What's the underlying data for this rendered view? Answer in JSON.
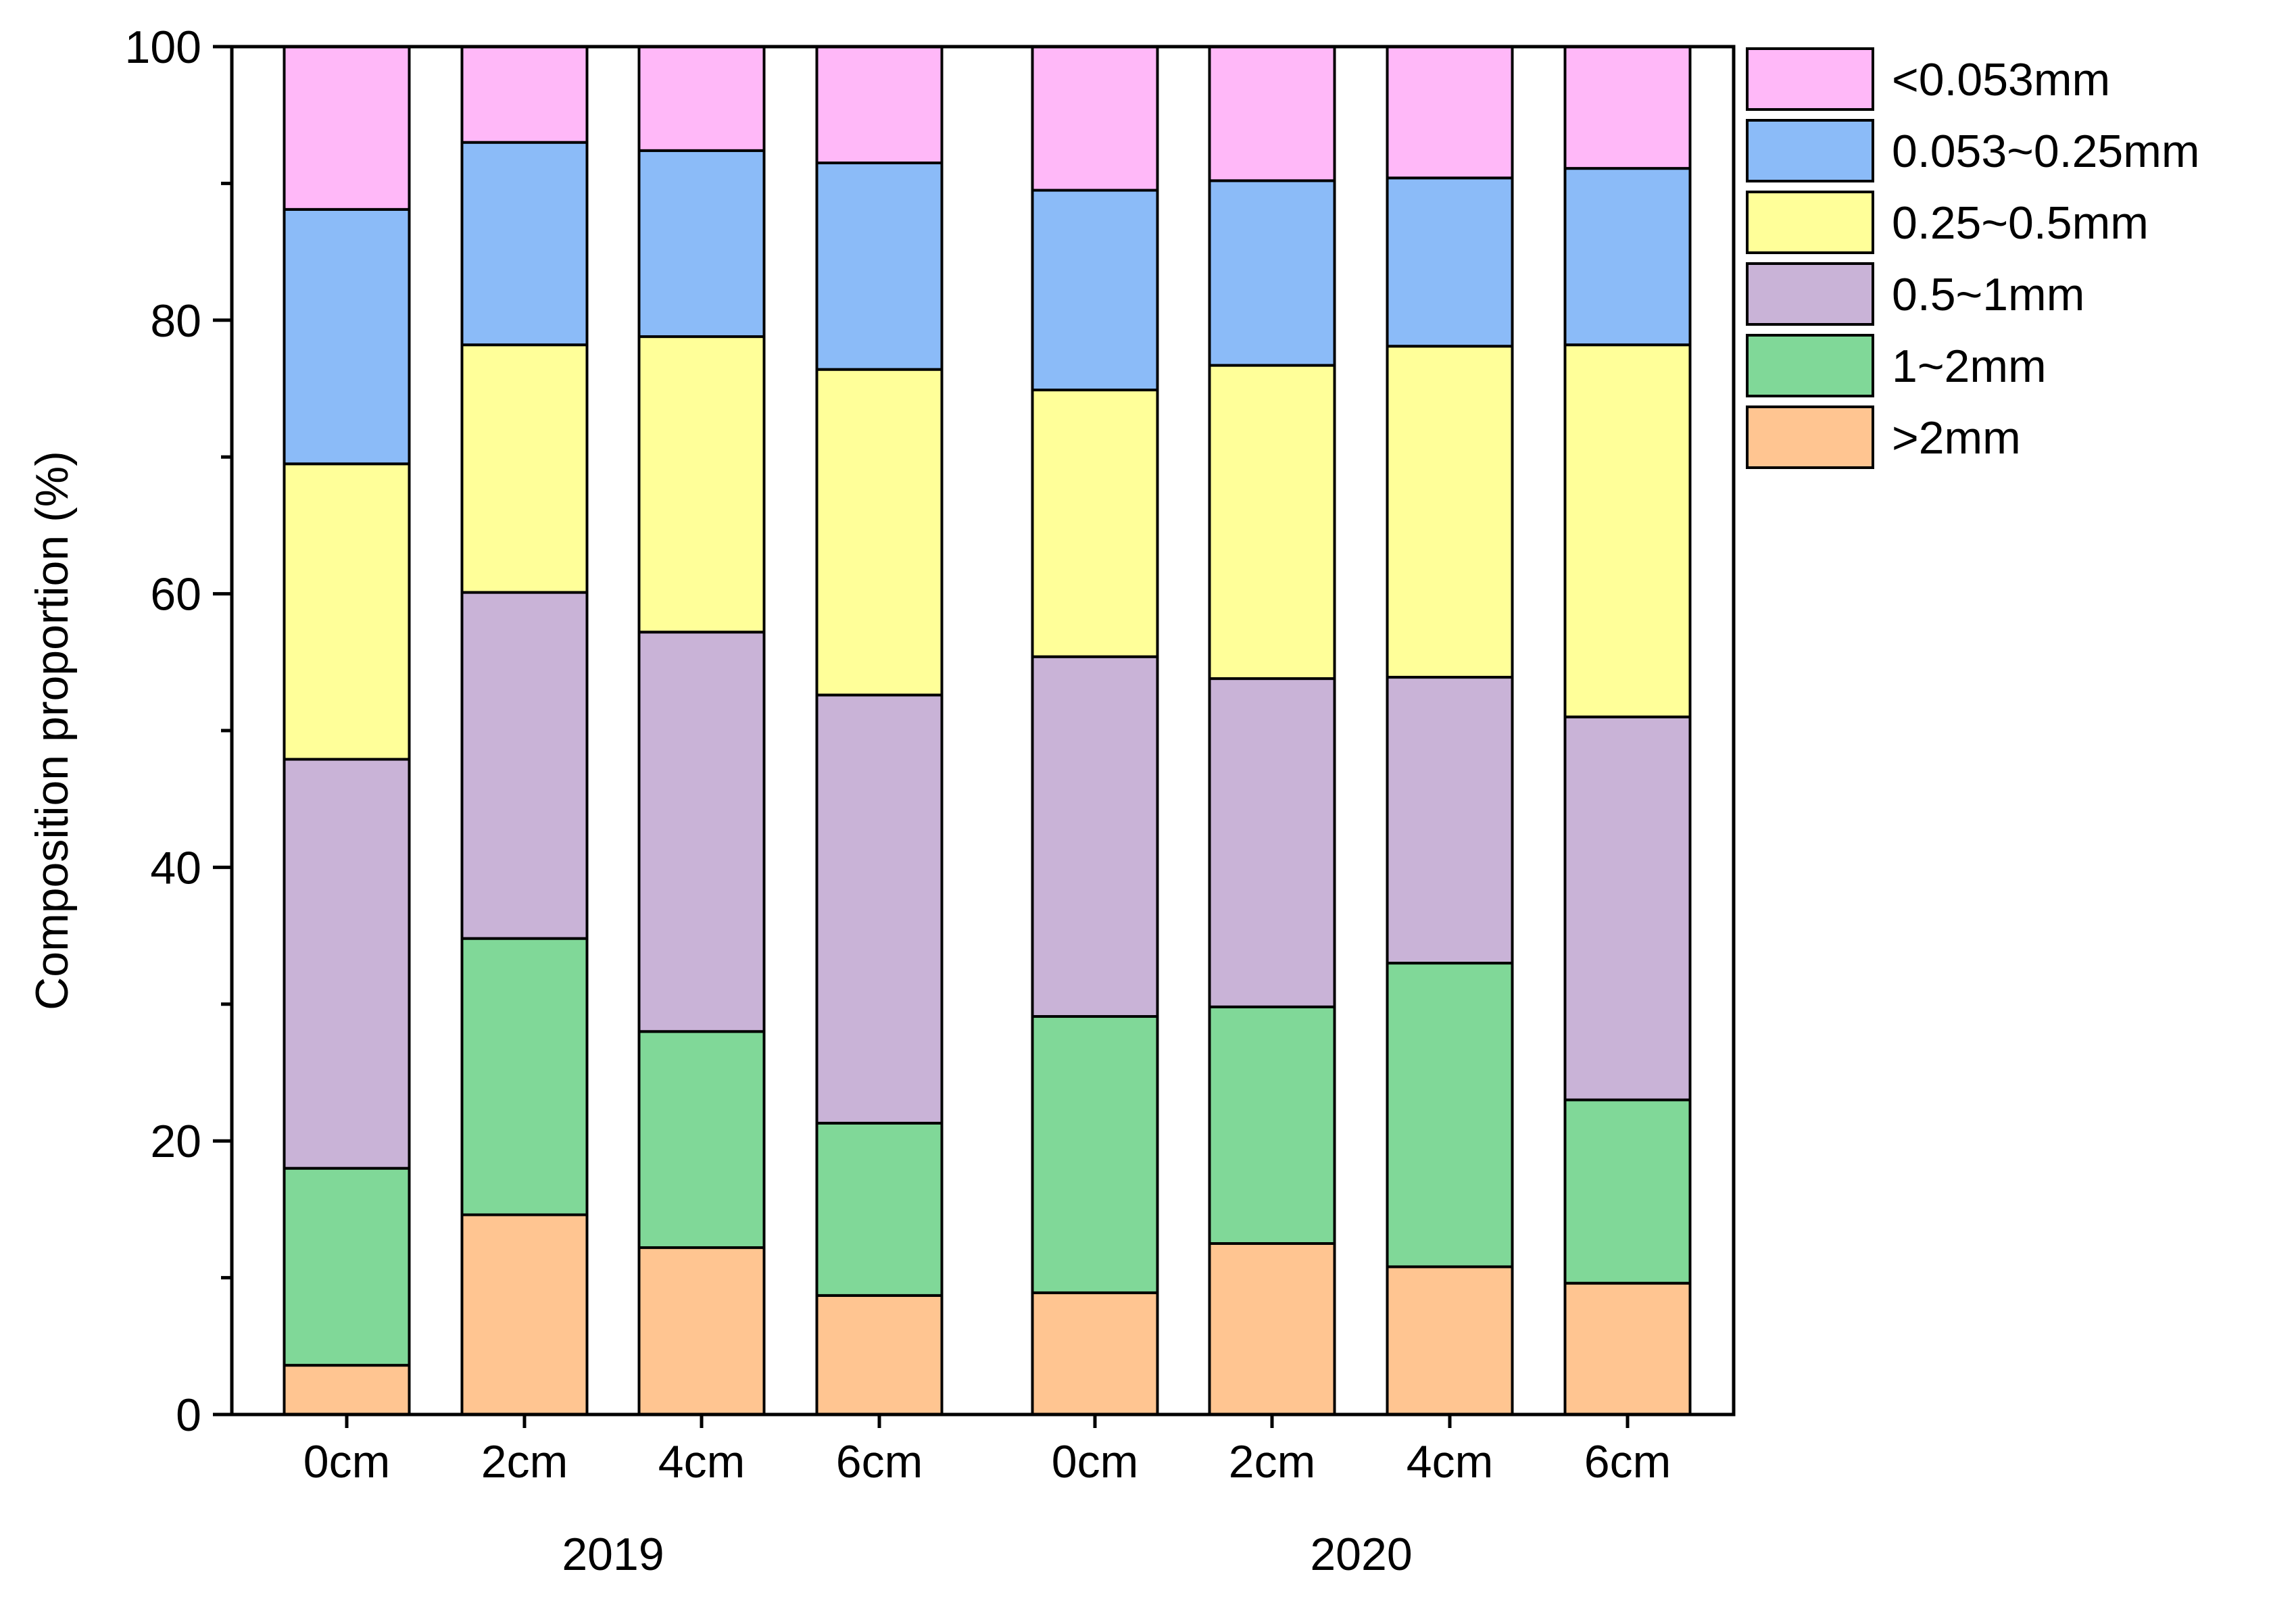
{
  "chart_data": {
    "type": "bar",
    "stacked": true,
    "ylabel": "Composition proportion (%)",
    "xlabel": "",
    "ylim": [
      0,
      100
    ],
    "yticks": [
      0,
      20,
      40,
      60,
      80,
      100
    ],
    "yticks_minor": [
      10,
      30,
      50,
      70,
      90
    ],
    "grid": false,
    "legend_position": "top-right-outside",
    "categories": [
      "0cm",
      "2cm",
      "4cm",
      "6cm",
      "0cm",
      "2cm",
      "4cm",
      "6cm"
    ],
    "groups": [
      {
        "label": "2019",
        "indices": [
          0,
          1,
          2,
          3
        ]
      },
      {
        "label": "2020",
        "indices": [
          4,
          5,
          6,
          7
        ]
      }
    ],
    "series": [
      {
        "name": ">2mm",
        "color": "#FFC591",
        "values": [
          3.6,
          14.6,
          12.2,
          8.7,
          8.9,
          12.5,
          10.8,
          9.6
        ]
      },
      {
        "name": "1~2mm",
        "color": "#80D898",
        "values": [
          14.4,
          20.2,
          15.8,
          12.6,
          20.2,
          17.3,
          22.2,
          13.4
        ]
      },
      {
        "name": "0.5~1mm",
        "color": "#C9B3D7",
        "values": [
          29.9,
          25.3,
          29.2,
          31.3,
          26.3,
          24.0,
          20.9,
          28.0
        ]
      },
      {
        "name": "0.25~0.5mm",
        "color": "#FFFF99",
        "values": [
          21.6,
          18.1,
          21.6,
          23.8,
          19.5,
          22.9,
          24.2,
          27.2
        ]
      },
      {
        "name": "0.053~0.25mm",
        "color": "#8BBBF8",
        "values": [
          18.6,
          14.8,
          13.6,
          15.1,
          14.6,
          13.5,
          12.3,
          12.9
        ]
      },
      {
        "name": "<0.053mm",
        "color": "#FFB8F8",
        "values": [
          11.9,
          7.0,
          7.6,
          8.5,
          10.5,
          9.8,
          9.6,
          8.9
        ]
      }
    ]
  }
}
